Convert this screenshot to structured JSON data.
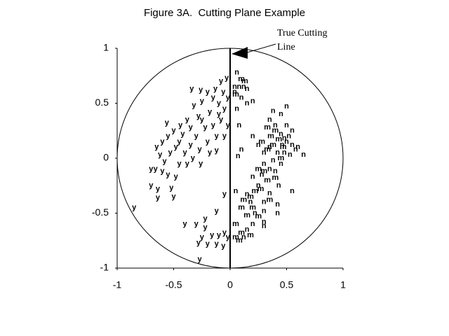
{
  "chart_data": {
    "type": "scatter",
    "title": "Figure 3A.  Cutting Plane Example",
    "annotation": [
      "True Cutting",
      "Line"
    ],
    "xlim": [
      -1,
      1
    ],
    "ylim": [
      -1,
      1
    ],
    "xticks": [
      -1,
      -0.5,
      0,
      0.5,
      1
    ],
    "yticks": [
      1,
      0.5,
      0,
      -0.5,
      -1
    ],
    "series": [
      {
        "marker": "y",
        "color": "#000000",
        "x": [
          -0.34,
          -0.26,
          -0.2,
          -0.13,
          -0.08,
          -0.03,
          -0.06,
          -0.15,
          -0.25,
          -0.32,
          -0.1,
          -0.02,
          -0.05,
          -0.18,
          -0.28,
          -0.38,
          -0.44,
          -0.5,
          -0.55,
          -0.6,
          -0.65,
          -0.62,
          -0.58,
          -0.66,
          -0.7,
          -0.6,
          -0.55,
          -0.48,
          -0.7,
          -0.64,
          -0.52,
          -0.5,
          -0.64,
          -0.85,
          -0.45,
          -0.4,
          -0.35,
          -0.3,
          -0.22,
          -0.15,
          -0.08,
          -0.02,
          -0.12,
          -0.2,
          -0.27,
          -0.33,
          -0.38,
          -0.26,
          -0.12,
          -0.05,
          -0.42,
          -0.48,
          -0.53,
          -0.45,
          -0.35,
          -0.25,
          -0.1,
          -0.3,
          -0.22,
          -0.16,
          -0.1,
          -0.05,
          -0.02,
          -0.25,
          -0.2,
          -0.12,
          -0.06,
          -0.28,
          -0.12,
          -0.22,
          -0.05,
          -0.27,
          -0.4,
          -0.18,
          -0.56
        ],
        "values": [
          0.63,
          0.62,
          0.6,
          0.63,
          0.7,
          0.73,
          0.6,
          0.55,
          0.52,
          0.48,
          0.5,
          0.55,
          0.45,
          0.42,
          0.38,
          0.35,
          0.3,
          0.25,
          0.2,
          0.15,
          0.1,
          0.03,
          -0.03,
          -0.1,
          -0.1,
          -0.12,
          -0.15,
          -0.17,
          -0.25,
          -0.28,
          -0.27,
          -0.35,
          -0.36,
          -0.45,
          -0.05,
          0.05,
          0.12,
          0.2,
          0.28,
          0.3,
          0.35,
          0.3,
          0.2,
          0.15,
          0.08,
          0.0,
          -0.05,
          -0.05,
          0.07,
          0.2,
          0.22,
          0.1,
          0.05,
          0.15,
          0.28,
          0.35,
          0.4,
          -0.6,
          -0.63,
          -0.7,
          -0.7,
          -0.68,
          -0.72,
          -0.72,
          -0.78,
          -0.78,
          -0.8,
          -0.77,
          -0.48,
          -0.55,
          -0.33,
          -0.92,
          -0.6,
          0.05,
          0.32
        ]
      },
      {
        "marker": "n",
        "color": "#000000",
        "x": [
          0.06,
          0.08,
          0.12,
          0.15,
          0.04,
          0.1,
          0.15,
          0.2,
          0.06,
          0.08,
          0.04,
          0.38,
          0.45,
          0.5,
          0.35,
          0.4,
          0.45,
          0.48,
          0.5,
          0.46,
          0.52,
          0.55,
          0.58,
          0.65,
          0.55,
          0.42,
          0.35,
          0.3,
          0.25,
          0.2,
          0.1,
          0.07,
          0.3,
          0.38,
          0.45,
          0.4,
          0.35,
          0.28,
          0.2,
          0.43,
          0.55,
          0.35,
          0.3,
          0.18,
          0.05,
          0.22,
          0.3,
          0.42,
          0.42,
          0.3,
          0.2,
          0.15,
          0.3,
          0.12,
          0.5,
          0.48,
          0.6,
          0.53,
          0.25,
          0.15
        ],
        "values": [
          0.78,
          0.65,
          0.65,
          0.63,
          0.6,
          0.55,
          0.5,
          0.52,
          0.45,
          0.3,
          0.65,
          0.43,
          0.4,
          0.47,
          0.35,
          0.3,
          0.22,
          0.18,
          0.15,
          0.12,
          0.2,
          0.12,
          0.08,
          0.03,
          0.25,
          0.05,
          0.1,
          0.05,
          0.12,
          0.2,
          0.08,
          0.02,
          -0.05,
          -0.02,
          -0.05,
          -0.12,
          -0.1,
          -0.15,
          -0.17,
          -0.25,
          -0.3,
          -0.32,
          -0.4,
          -0.4,
          -0.3,
          -0.5,
          -0.48,
          -0.42,
          -0.5,
          -0.58,
          -0.6,
          -0.65,
          -0.62,
          -0.72,
          0.3,
          0.05,
          0.1,
          0.03,
          -0.25,
          -0.33
        ]
      },
      {
        "marker": "m",
        "color": "#000000",
        "x": [
          0.1,
          0.13,
          0.05,
          0.33,
          0.36,
          0.4,
          0.43,
          0.47,
          0.38,
          0.25,
          0.3,
          0.33,
          0.27,
          0.22,
          0.18,
          0.12,
          0.2,
          0.1,
          0.15,
          0.25,
          0.05,
          0.1,
          0.05,
          0.08,
          0.18,
          0.35,
          0.33,
          0.4,
          0.45,
          0.28
        ],
        "values": [
          0.72,
          0.7,
          0.58,
          0.28,
          0.2,
          0.25,
          0.17,
          0.1,
          0.12,
          -0.1,
          -0.12,
          -0.2,
          -0.28,
          -0.3,
          -0.35,
          -0.38,
          -0.45,
          -0.45,
          -0.52,
          -0.53,
          -0.6,
          -0.68,
          -0.72,
          -0.75,
          -0.7,
          -0.38,
          0.08,
          -0.18,
          0.0,
          0.15
        ]
      }
    ]
  }
}
